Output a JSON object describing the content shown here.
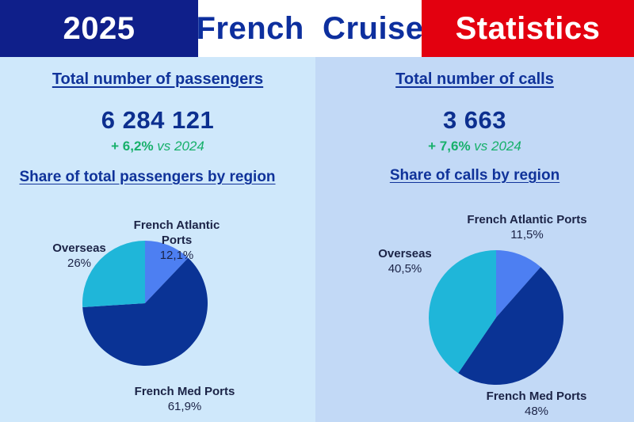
{
  "banner": {
    "year": "2025",
    "middle": "French  Cruise",
    "right": "Statistics"
  },
  "left_panel": {
    "heading": "Total number of passengers",
    "total": "6 284 121",
    "growth_pct": "+ 6,2%",
    "growth_vs": "vs 2024",
    "subheading": "Share of total passengers by region"
  },
  "right_panel": {
    "heading": "Total number of calls",
    "total": "3 663",
    "growth_pct": "+ 7,6%",
    "growth_vs": "vs 2024",
    "subheading": "Share of calls by region"
  },
  "colors": {
    "atlantic": "#4d7ff2",
    "med": "#0a3395",
    "overseas": "#1fb6d9",
    "growth": "#17b06b",
    "banner_blue": "#0f1f8a",
    "banner_red": "#e3000f"
  },
  "chart_data": [
    {
      "type": "pie",
      "title": "Share of total passengers by region",
      "slices": [
        {
          "name": "French Atlantic Ports",
          "label": "12,1%",
          "value": 12.1
        },
        {
          "name": "French Med Ports",
          "label": "61,9%",
          "value": 61.9
        },
        {
          "name": "Overseas",
          "label": "26%",
          "value": 26
        }
      ]
    },
    {
      "type": "pie",
      "title": "Share of calls by region",
      "slices": [
        {
          "name": "French Atlantic Ports",
          "label": "11,5%",
          "value": 11.5
        },
        {
          "name": "French Med Ports",
          "label": "48%",
          "value": 48
        },
        {
          "name": "Overseas",
          "label": "40,5%",
          "value": 40.5
        }
      ]
    }
  ]
}
